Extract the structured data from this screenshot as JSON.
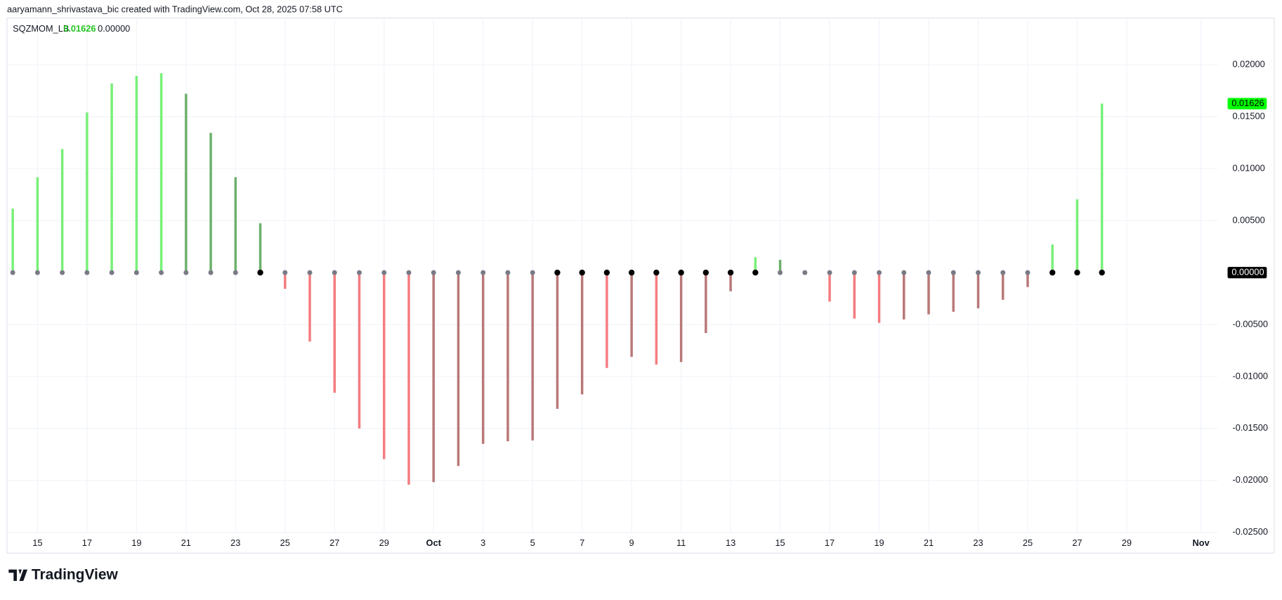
{
  "header": "aaryamann_shrivastava_bic created with TradingView.com, Oct 28, 2025 07:58 UTC",
  "brand": "TradingView",
  "chart_data": {
    "type": "histogram",
    "categories": [
      null,
      "15",
      null,
      "17",
      null,
      "19",
      null,
      "21",
      null,
      "23",
      null,
      "25",
      null,
      "27",
      null,
      "29",
      null,
      "Oct",
      null,
      "3",
      null,
      "5",
      null,
      "7",
      null,
      "9",
      null,
      "11",
      null,
      "13",
      null,
      "15",
      null,
      "17",
      null,
      "19",
      null,
      "21",
      null,
      "23",
      null,
      "25",
      null,
      "27",
      null,
      "29",
      null,
      null,
      "Nov"
    ],
    "series": [
      {
        "name": "SQZMOM_LB",
        "type": "histogram",
        "values": [
          0.00615,
          0.00918,
          0.01189,
          0.01541,
          0.0182,
          0.01893,
          0.01918,
          0.01721,
          0.01344,
          0.00918,
          0.00475,
          -0.00156,
          -0.00664,
          -0.01156,
          -0.015,
          -0.01795,
          -0.02041,
          -0.02016,
          -0.01861,
          -0.01648,
          -0.01623,
          -0.01615,
          -0.01311,
          -0.01172,
          -0.00918,
          -0.00811,
          -0.00885,
          -0.00861,
          -0.00582,
          -0.0018,
          0.00148,
          0.00123,
          0,
          -0.00279,
          -0.00443,
          -0.00484,
          -0.00451,
          -0.00402,
          -0.00377,
          -0.00344,
          -0.00262,
          -0.00139,
          0.0027,
          0.00705,
          0.01626,
          null,
          null,
          null,
          null
        ],
        "colors": [
          "#78f078",
          "#78f078",
          "#78f078",
          "#78f078",
          "#78f078",
          "#78f078",
          "#78f078",
          "#6cb06c",
          "#6cb06c",
          "#6cb06c",
          "#6cb06c",
          "#f47c80",
          "#f47c80",
          "#f47c80",
          "#f47c80",
          "#f47c80",
          "#f47c80",
          "#b97878",
          "#b97878",
          "#b97878",
          "#b97878",
          "#b97878",
          "#b97878",
          "#b97878",
          "#f47c80",
          "#b97878",
          "#f47c80",
          "#b97878",
          "#b97878",
          "#b97878",
          "#78f078",
          "#6cb06c",
          "#6cb06c",
          "#f47c80",
          "#f47c80",
          "#f47c80",
          "#b97878",
          "#b97878",
          "#b97878",
          "#b97878",
          "#b97878",
          "#b97878",
          "#78f078",
          "#78f078",
          "#78f078",
          null,
          null,
          null,
          null
        ]
      },
      {
        "type": "dots",
        "values": [
          0,
          0,
          0,
          0,
          0,
          0,
          0,
          0,
          0,
          0,
          0,
          0,
          0,
          0,
          0,
          0,
          0,
          0,
          0,
          0,
          0,
          0,
          0,
          0,
          0,
          0,
          0,
          0,
          0,
          0,
          0,
          0,
          0,
          0,
          0,
          0,
          0,
          0,
          0,
          0,
          0,
          0,
          0,
          0,
          0,
          null,
          null,
          null,
          null
        ],
        "colors": [
          "#787b86",
          "#787b86",
          "#787b86",
          "#787b86",
          "#787b86",
          "#787b86",
          "#787b86",
          "#787b86",
          "#787b86",
          "#787b86",
          "#000000",
          "#787b86",
          "#787b86",
          "#787b86",
          "#787b86",
          "#787b86",
          "#787b86",
          "#787b86",
          "#787b86",
          "#787b86",
          "#787b86",
          "#787b86",
          "#000000",
          "#000000",
          "#000000",
          "#000000",
          "#000000",
          "#000000",
          "#000000",
          "#000000",
          "#000000",
          "#787b86",
          "#787b86",
          "#787b86",
          "#787b86",
          "#787b86",
          "#787b86",
          "#787b86",
          "#787b86",
          "#787b86",
          "#787b86",
          "#787b86",
          "#000000",
          "#000000",
          "#000000",
          null,
          null,
          null,
          null
        ]
      }
    ],
    "last_value_labels": [
      "0.01626",
      "0.00000"
    ],
    "last_value_colors": [
      "#00ff00",
      "#000000"
    ],
    "ylim": [
      -0.027,
      0.0245
    ],
    "yticks": [
      {
        "value": 0.02,
        "label": "0.02000"
      },
      {
        "value": 0.015,
        "label": "0.01500"
      },
      {
        "value": 0.01,
        "label": "0.01000"
      },
      {
        "value": 0.005,
        "label": "0.00500"
      },
      {
        "value": -0.005,
        "label": "-0.00500"
      },
      {
        "value": -0.01,
        "label": "-0.01000"
      },
      {
        "value": -0.015,
        "label": "-0.01500"
      },
      {
        "value": -0.02,
        "label": "-0.02000"
      },
      {
        "value": -0.025,
        "label": "-0.02500"
      }
    ],
    "grid": true
  }
}
